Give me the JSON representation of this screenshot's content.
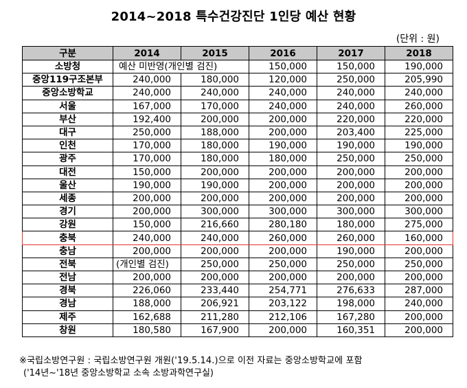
{
  "title": "2014~2018 특수건강진단 1인당 예산 현황",
  "unit": "(단위 : 원)",
  "headers": [
    "구분",
    "2014",
    "2015",
    "2016",
    "2017",
    "2018"
  ],
  "rows": [
    {
      "region": "소방청",
      "span": "예산 미반영(개인별 검진)",
      "values": [
        "150,000",
        "150,000",
        "190,000"
      ]
    },
    {
      "region": "중앙119구조본부",
      "values": [
        "240,000",
        "180,000",
        "120,000",
        "250,000",
        "205,990"
      ]
    },
    {
      "region": "중앙소방학교",
      "values": [
        "240,000",
        "240,000",
        "240,000",
        "240,000",
        "240,000"
      ]
    },
    {
      "region": "서울",
      "values": [
        "167,000",
        "170,000",
        "240,000",
        "240,000",
        "260,000"
      ]
    },
    {
      "region": "부산",
      "values": [
        "192,400",
        "200,000",
        "200,000",
        "220,000",
        "220,000"
      ]
    },
    {
      "region": "대구",
      "values": [
        "250,000",
        "188,000",
        "200,000",
        "203,400",
        "225,000"
      ]
    },
    {
      "region": "인천",
      "values": [
        "170,000",
        "180,000",
        "190,000",
        "190,000",
        "190,000"
      ]
    },
    {
      "region": "광주",
      "values": [
        "170,000",
        "180,000",
        "180,000",
        "250,000",
        "250,000"
      ]
    },
    {
      "region": "대전",
      "values": [
        "150,000",
        "200,000",
        "200,000",
        "200,000",
        "200,000"
      ]
    },
    {
      "region": "울산",
      "values": [
        "190,000",
        "190,000",
        "200,000",
        "200,000",
        "200,000"
      ]
    },
    {
      "region": "세종",
      "values": [
        "200,000",
        "200,000",
        "200,000",
        "200,000",
        "200,000"
      ]
    },
    {
      "region": "경기",
      "values": [
        "200,000",
        "300,000",
        "300,000",
        "300,000",
        "300,000"
      ]
    },
    {
      "region": "강원",
      "values": [
        "150,000",
        "216,660",
        "280,180",
        "180,000",
        "275,000"
      ]
    },
    {
      "region": "충북",
      "highlight": true,
      "values": [
        "240,000",
        "240,000",
        "260,000",
        "260,000",
        "160,000"
      ]
    },
    {
      "region": "충남",
      "values": [
        "200,000",
        "200,000",
        "200,000",
        "190,000",
        "200,000"
      ]
    },
    {
      "region": "전북",
      "note": "(개인별 검진)",
      "values": [
        "250,000",
        "250,000",
        "250,000",
        "250,000"
      ]
    },
    {
      "region": "전남",
      "values": [
        "200,000",
        "200,000",
        "200,000",
        "200,000",
        "200,000"
      ]
    },
    {
      "region": "경북",
      "values": [
        "226,060",
        "233,440",
        "254,771",
        "276,633",
        "287,000"
      ]
    },
    {
      "region": "경남",
      "values": [
        "188,000",
        "206,921",
        "203,122",
        "198,000",
        "240,000"
      ]
    },
    {
      "region": "제주",
      "values": [
        "162,688",
        "211,280",
        "212,106",
        "167,280",
        "200,000"
      ]
    },
    {
      "region": "창원",
      "values": [
        "180,580",
        "167,900",
        "200,000",
        "160,351",
        "200,000"
      ]
    }
  ],
  "footnote_line1": "※국립소방연구원 : 국립소방연구원 개원('19.5.14.)으로 이전 자료는 중앙소방학교에 포함",
  "footnote_line2": "('14년~'18년 중앙소방학교 소속 소방과학연구실)",
  "colors": {
    "header_bg": "#c9c9c9",
    "highlight_border": "#e0302a"
  }
}
